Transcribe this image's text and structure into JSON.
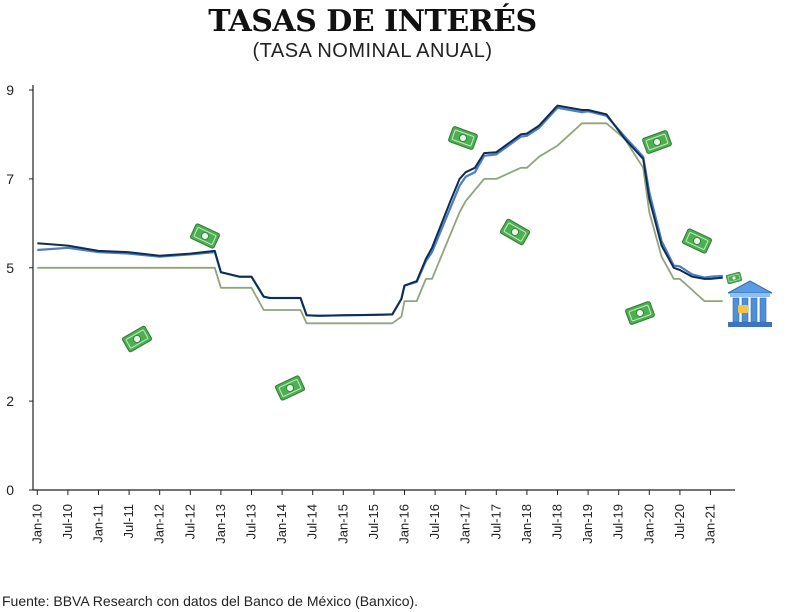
{
  "title": "TASAS DE INTERÉS",
  "subtitle": "(TASA NOMINAL ANUAL)",
  "source": "Fuente: BBVA Research con datos del Banco de México (Banxico).",
  "colors": {
    "series_dark": "#0f2d52",
    "series_blue": "#4d7ec2",
    "series_green": "#8fa67a",
    "money": "#4caf50",
    "building": "#4f8ed8"
  },
  "icons": [
    "money-bill-icon",
    "bank-building-icon"
  ],
  "chart_data": {
    "type": "line",
    "title": "TASAS DE INTERÉS",
    "subtitle": "(TASA NOMINAL ANUAL)",
    "xlabel": "",
    "ylabel": "",
    "ylim": [
      0,
      9
    ],
    "yticks": [
      0,
      2,
      5,
      7,
      9
    ],
    "ytick_labels": [
      "0",
      "2",
      "5",
      "7",
      "9"
    ],
    "xticks": [
      "Jan-10",
      "Jul-10",
      "Jan-11",
      "Jul-11",
      "Jan-12",
      "Jul-12",
      "Jan-13",
      "Jul-13",
      "Jan-14",
      "Jul-14",
      "Jan-15",
      "Jul-15",
      "Jan-16",
      "Jul-16",
      "Jan-17",
      "Jul-17",
      "Jan-18",
      "Jul-18",
      "Jan-19",
      "Jul-19",
      "Jan-20",
      "Jul-20",
      "Jan-21"
    ],
    "x": [
      2010.0,
      2010.5,
      2011.0,
      2011.5,
      2012.0,
      2012.5,
      2012.9,
      2013.0,
      2013.3,
      2013.5,
      2013.7,
      2013.8,
      2014.0,
      2014.3,
      2014.4,
      2014.6,
      2015.0,
      2015.5,
      2015.8,
      2015.95,
      2016.0,
      2016.2,
      2016.35,
      2016.45,
      2016.75,
      2016.9,
      2017.0,
      2017.15,
      2017.3,
      2017.5,
      2017.9,
      2018.0,
      2018.2,
      2018.5,
      2018.9,
      2019.0,
      2019.3,
      2019.6,
      2019.9,
      2020.0,
      2020.2,
      2020.4,
      2020.5,
      2020.7,
      2020.9,
      2021.0,
      2021.2
    ],
    "series": [
      {
        "values": [
          5.4,
          5.45,
          5.35,
          5.32,
          5.25,
          5.3,
          5.35,
          4.9,
          4.8,
          4.8,
          4.35,
          4.32,
          4.32,
          4.32,
          3.93,
          3.92,
          3.93,
          3.94,
          3.95,
          4.3,
          4.6,
          4.68,
          5.15,
          5.35,
          6.35,
          6.85,
          7.05,
          7.15,
          7.52,
          7.55,
          7.95,
          7.97,
          8.15,
          8.6,
          8.5,
          8.52,
          8.42,
          7.95,
          7.5,
          6.7,
          5.6,
          5.05,
          5.03,
          4.85,
          4.78,
          4.8,
          4.82
        ]
      },
      {
        "values": [
          5.55,
          5.5,
          5.38,
          5.35,
          5.27,
          5.32,
          5.38,
          4.9,
          4.8,
          4.8,
          4.35,
          4.32,
          4.32,
          4.32,
          3.93,
          3.92,
          3.93,
          3.94,
          3.95,
          4.3,
          4.6,
          4.7,
          5.2,
          5.45,
          6.5,
          7.0,
          7.15,
          7.25,
          7.58,
          7.6,
          8.0,
          8.02,
          8.2,
          8.65,
          8.55,
          8.55,
          8.45,
          7.9,
          7.45,
          6.55,
          5.5,
          5.0,
          4.95,
          4.8,
          4.75,
          4.75,
          4.78
        ]
      },
      {
        "values": [
          5.0,
          5.0,
          5.0,
          5.0,
          5.0,
          5.0,
          5.0,
          4.55,
          4.55,
          4.55,
          4.05,
          4.05,
          4.05,
          4.05,
          3.75,
          3.75,
          3.75,
          3.75,
          3.75,
          3.9,
          4.25,
          4.25,
          4.75,
          4.75,
          5.75,
          6.25,
          6.5,
          6.75,
          7.0,
          7.0,
          7.25,
          7.25,
          7.5,
          7.75,
          8.25,
          8.25,
          8.25,
          7.9,
          7.25,
          6.25,
          5.25,
          4.75,
          4.75,
          4.5,
          4.25,
          4.25,
          4.25
        ]
      }
    ]
  }
}
